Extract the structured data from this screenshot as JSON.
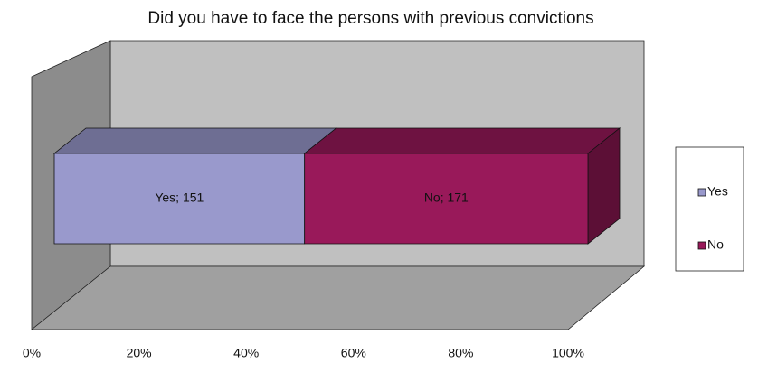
{
  "chart_data": {
    "type": "bar",
    "orientation": "horizontal",
    "stacking": "percent",
    "three_d": true,
    "title": "Did you have to face the persons with previous convictions",
    "series": [
      {
        "name": "Yes",
        "color": "#9999cc",
        "values": [
          151
        ],
        "value_labels": [
          "Yes; 151"
        ]
      },
      {
        "name": "No",
        "color": "#99195a",
        "values": [
          171
        ],
        "value_labels": [
          "No; 171"
        ]
      }
    ],
    "xlim": [
      0,
      100
    ],
    "xticks": [
      {
        "value": 0,
        "label": "0%"
      },
      {
        "value": 20,
        "label": "20%"
      },
      {
        "value": 40,
        "label": "40%"
      },
      {
        "value": 60,
        "label": "60%"
      },
      {
        "value": 80,
        "label": "80%"
      },
      {
        "value": 100,
        "label": "100%"
      }
    ],
    "legend": "right"
  }
}
